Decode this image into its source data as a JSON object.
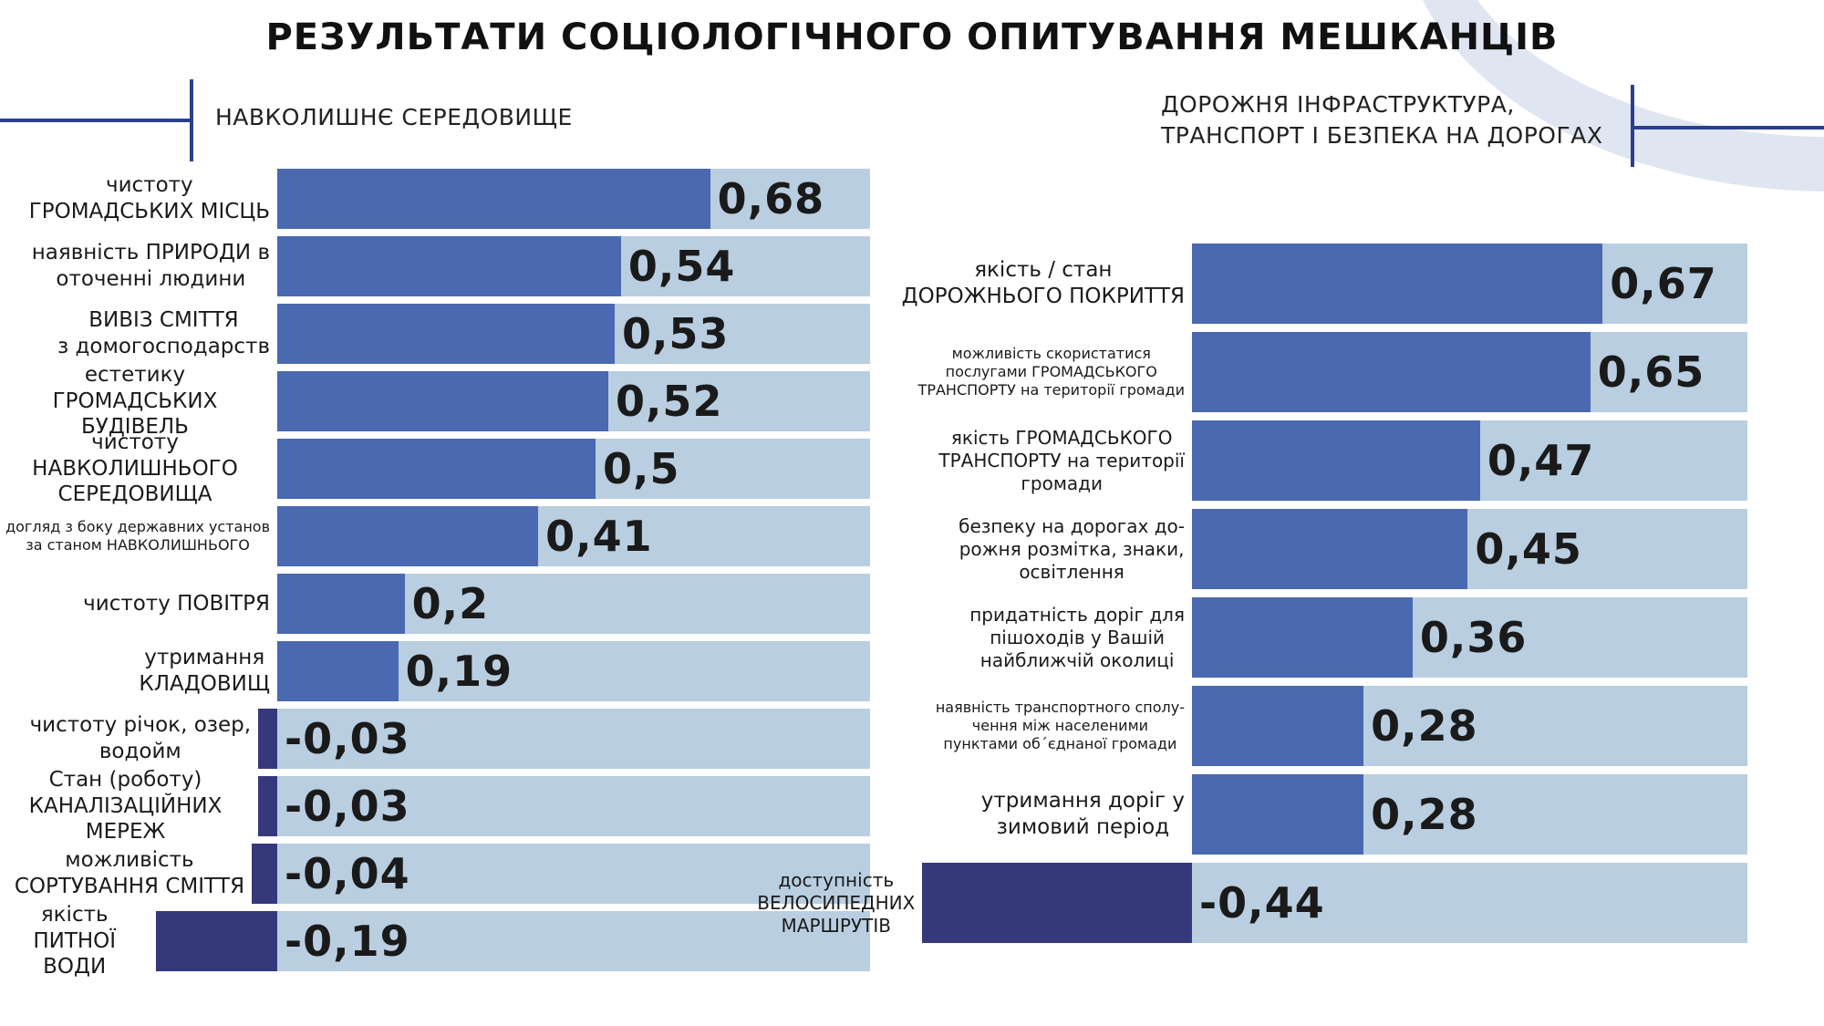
{
  "title": "РЕЗУЛЬТАТИ СОЦІОЛОГІЧНОГО ОПИТУВАННЯ МЕШКАНЦІВ",
  "chart_data": [
    {
      "type": "bar",
      "orientation": "horizontal",
      "title": "НАВКОЛИШНЄ СЕРЕДОВИЩЕ",
      "categories": [
        "чистоту\nГРОМАДСЬКИХ МІСЦЬ",
        "наявність ПРИРОДИ в\nоточенні людини",
        "ВИВІЗ СМІТТЯ\nз домогосподарств",
        "естетику\nГРОМАДСЬКИХ БУДІВЕЛЬ",
        "чистоту НАВКОЛИШНЬОГО\nСЕРЕДОВИЩА",
        "догляд з боку державних установ\nза станом НАВКОЛИШНЬОГО",
        "чистоту ПОВІТРЯ",
        "утримання\nКЛАДОВИЩ",
        "чистоту річок, озер,\nводойм",
        "Стан (роботу)\nКАНАЛІЗАЦІЙНИХ МЕРЕЖ",
        "можливість\nСОРТУВАННЯ СМІТТЯ",
        "якість\nПИТНОЇ ВОДИ"
      ],
      "values": [
        0.68,
        0.54,
        0.53,
        0.52,
        0.5,
        0.41,
        0.2,
        0.19,
        -0.03,
        -0.03,
        -0.04,
        -0.19
      ],
      "value_labels": [
        "0,68",
        "0,54",
        "0,53",
        "0,52",
        "0,5",
        "0,41",
        "0,2",
        "0,19",
        "-0,03",
        "-0,03",
        "-0,04",
        "-0,19"
      ],
      "color": "#4a69b0",
      "negative_color": "#36387c",
      "track_color": "#b9cee0"
    },
    {
      "type": "bar",
      "orientation": "horizontal",
      "title": "ДОРОЖНЯ ІНФРАСТРУКТУРА,\nТРАНСПОРТ І БЕЗПЕКА НА ДОРОГАХ",
      "categories": [
        "якість / стан\nДОРОЖНЬОГО ПОКРИТТЯ",
        "можливість скористатися\nпослугами ГРОМАДСЬКОГО\nТРАНСПОРТУ на території громади",
        "якість ГРОМАДСЬКОГО\nТРАНСПОРТУ на території\nгромади",
        "безпеку на дорогах до-\nрожня розмітка, знаки,\nосвітлення",
        "придатність доріг для\nпішоходів у Вашій\nнайближчій околиці",
        "наявність транспортного сполу-\nчення між населеними\nпунктами об´єднаної громади",
        "утримання доріг у\nзимовий період",
        "доступність\nВЕЛОСИПЕДНИХ\nМАРШРУТІВ"
      ],
      "values": [
        0.67,
        0.65,
        0.47,
        0.45,
        0.36,
        0.28,
        0.28,
        -0.44
      ],
      "value_labels": [
        "0,67",
        "0,65",
        "0,47",
        "0,45",
        "0,36",
        "0,28",
        "0,28",
        "-0,44"
      ],
      "color": "#4a69b0",
      "negative_color": "#36387c",
      "track_color": "#b9cee0"
    }
  ]
}
